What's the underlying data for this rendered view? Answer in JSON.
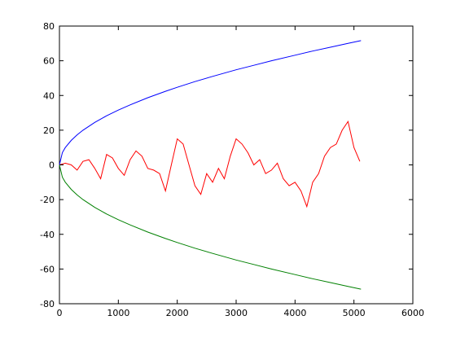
{
  "chart_data": {
    "type": "line",
    "title": "",
    "xlabel": "",
    "ylabel": "",
    "xlim": [
      0,
      6000
    ],
    "ylim": [
      -80,
      80
    ],
    "grid": false,
    "legend": "none",
    "xticks": [
      0,
      1000,
      2000,
      3000,
      4000,
      5000,
      6000
    ],
    "yticks": [
      -80,
      -60,
      -40,
      -20,
      0,
      20,
      40,
      60,
      80
    ],
    "xtick_labels": [
      "0",
      "1000",
      "2000",
      "3000",
      "4000",
      "5000",
      "6000"
    ],
    "ytick_labels": [
      "-80",
      "-60",
      "-40",
      "-20",
      "0",
      "20",
      "40",
      "60",
      "80"
    ],
    "series": [
      {
        "color": "#0000ff",
        "x": [
          0,
          50,
          100,
          200,
          300,
          400,
          600,
          800,
          1000,
          1200,
          1500,
          1800,
          2000,
          2300,
          2600,
          3000,
          3300,
          3600,
          4000,
          4300,
          4600,
          4900,
          5120
        ],
        "y": [
          0,
          7.1,
          10,
          14.1,
          17.3,
          20,
          24.5,
          28.3,
          31.6,
          34.6,
          38.7,
          42.4,
          44.7,
          48,
          51,
          54.8,
          57.4,
          60,
          63.2,
          65.6,
          67.8,
          70,
          71.6
        ]
      },
      {
        "color": "#008000",
        "x": [
          0,
          50,
          100,
          200,
          300,
          400,
          600,
          800,
          1000,
          1200,
          1500,
          1800,
          2000,
          2300,
          2600,
          3000,
          3300,
          3600,
          4000,
          4300,
          4600,
          4900,
          5120
        ],
        "y": [
          0,
          -7.1,
          -10,
          -14.1,
          -17.3,
          -20,
          -24.5,
          -28.3,
          -31.6,
          -34.6,
          -38.7,
          -42.4,
          -44.7,
          -48,
          -51,
          -54.8,
          -57.4,
          -60,
          -63.2,
          -65.6,
          -67.8,
          -70,
          -71.6
        ]
      },
      {
        "color": "#ff0000",
        "x": [
          0,
          100,
          200,
          300,
          400,
          500,
          600,
          700,
          800,
          900,
          1000,
          1100,
          1200,
          1300,
          1400,
          1500,
          1600,
          1700,
          1800,
          1900,
          2000,
          2100,
          2200,
          2300,
          2400,
          2500,
          2600,
          2700,
          2800,
          2900,
          3000,
          3100,
          3200,
          3300,
          3400,
          3500,
          3600,
          3700,
          3800,
          3900,
          4000,
          4100,
          4200,
          4300,
          4400,
          4500,
          4600,
          4700,
          4800,
          4900,
          5000,
          5100
        ],
        "y": [
          0,
          1,
          0,
          -3,
          2,
          3,
          -2,
          -8,
          6,
          4,
          -2,
          -6,
          3,
          8,
          5,
          -2,
          -3,
          -5,
          -15,
          0,
          15,
          12,
          0,
          -12,
          -17,
          -5,
          -10,
          -2,
          -8,
          5,
          15,
          12,
          7,
          0,
          3,
          -5,
          -3,
          1,
          -8,
          -12,
          -10,
          -15,
          -24,
          -10,
          -5,
          5,
          10,
          12,
          20,
          25,
          10,
          2
        ]
      }
    ]
  }
}
